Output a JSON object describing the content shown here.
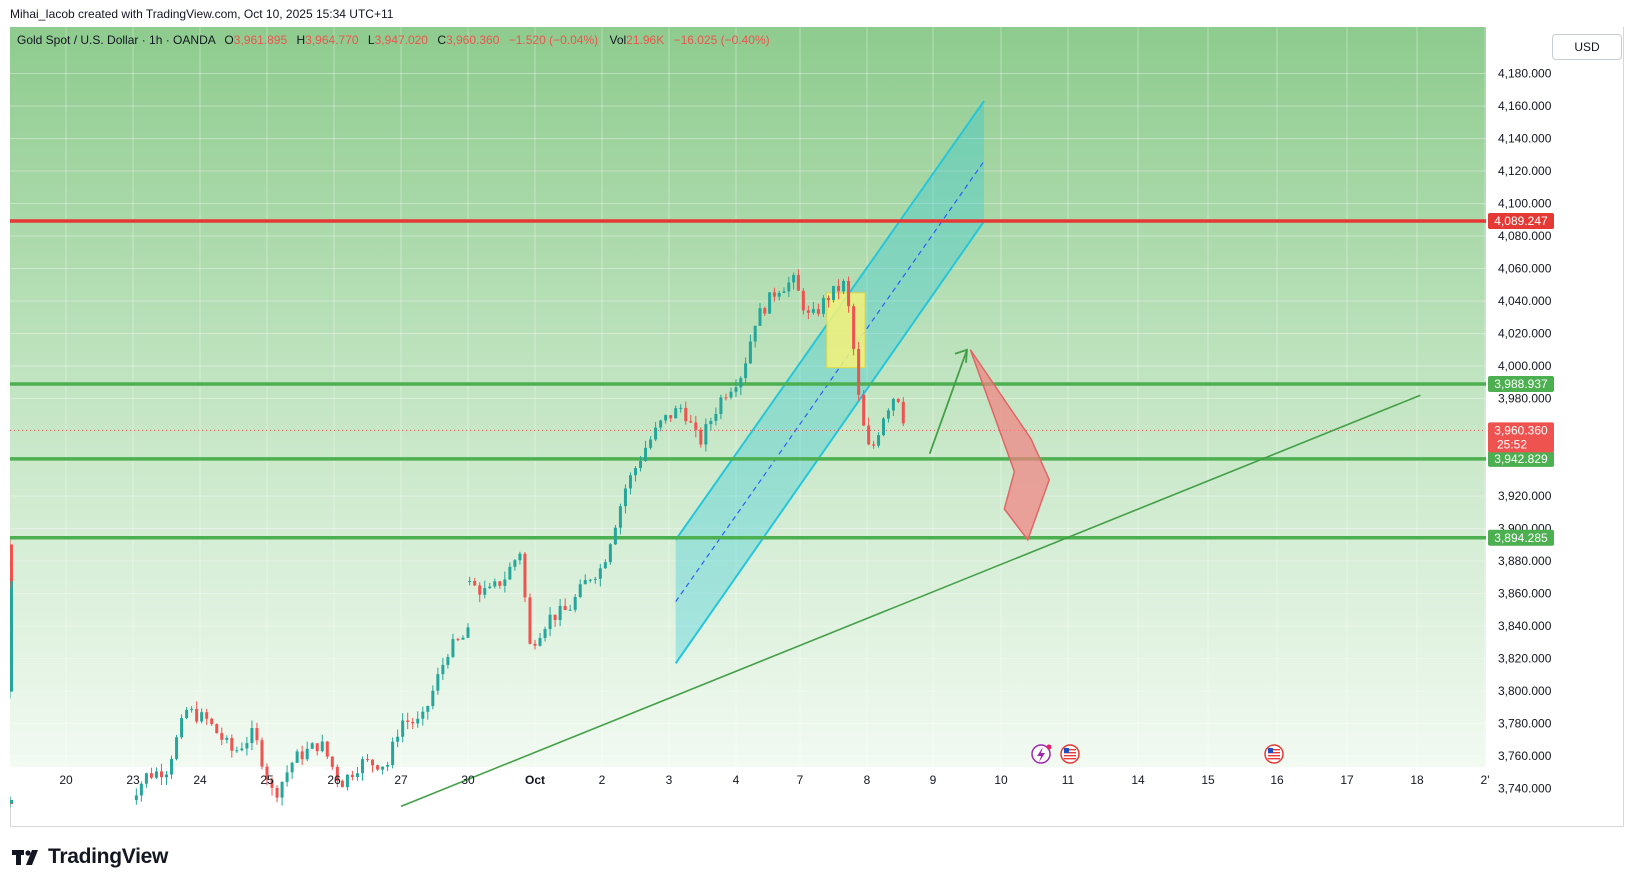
{
  "header": {
    "creator_line": "Mihai_Iacob created with TradingView.com, Oct 10, 2025 15:34 UTC+11"
  },
  "legend": {
    "symbol": "Gold Spot / U.S. Dollar · 1h · OANDA",
    "o_label": "O",
    "o_value": "3,961.895",
    "h_label": "H",
    "h_value": "3,964.770",
    "l_label": "L",
    "l_value": "3,947.020",
    "c_label": "C",
    "c_value": "3,960.360",
    "change": "−1.520 (−0.04%)",
    "vol_label": "Vol",
    "vol_value": "21.96K",
    "vol_change": "−16.025 (−0.40%)"
  },
  "currency_button": "USD",
  "brand": "TradingView",
  "colors": {
    "background_top": "#8ecb8e",
    "background_bottom": "#f2faf2",
    "resistance": "#e53935",
    "support": "#4caf50",
    "channel": "#26c6da",
    "candle_up": "#26a69a",
    "candle_down": "#ef5350",
    "price_label_bg": "#ef5350",
    "support_label_bg": "#4caf50",
    "arrow_red": "#f28080",
    "highlight_box": "#f5f27a"
  },
  "chart_data": {
    "type": "candlestick",
    "symbol": "XAUUSD",
    "timeframe": "1h",
    "y_axis_ticks": [
      "4,180.000",
      "4,160.000",
      "4,140.000",
      "4,120.000",
      "4,100.000",
      "4,080.000",
      "4,060.000",
      "4,040.000",
      "4,020.000",
      "4,000.000",
      "3,980.000",
      "3,920.000",
      "3,900.000",
      "3,880.000",
      "3,860.000",
      "3,840.000",
      "3,820.000",
      "3,800.000",
      "3,780.000",
      "3,760.000",
      "3,740.000"
    ],
    "x_axis_ticks": [
      "20",
      "23",
      "24",
      "25",
      "26",
      "27",
      "30",
      "Oct",
      "2",
      "3",
      "4",
      "7",
      "8",
      "9",
      "10",
      "11",
      "14",
      "15",
      "16",
      "17",
      "18",
      "2'"
    ],
    "ylim": [
      3730,
      4190
    ],
    "horizontal_levels": [
      {
        "label": "4,089.247",
        "value": 4089.247,
        "role": "resistance"
      },
      {
        "label": "3,988.937",
        "value": 3988.937,
        "role": "support"
      },
      {
        "label": "3,942.829",
        "value": 3942.829,
        "role": "support"
      },
      {
        "label": "3,894.285",
        "value": 3894.285,
        "role": "support"
      }
    ],
    "last_price": {
      "label": "3,960.360",
      "countdown": "25:52",
      "value": 3960.36
    },
    "close_path": [
      {
        "x": 22.9,
        "close": 3731
      },
      {
        "x": 23.2,
        "close": 3748
      },
      {
        "x": 23.5,
        "close": 3752
      },
      {
        "x": 23.8,
        "close": 3788
      },
      {
        "x": 24.1,
        "close": 3782
      },
      {
        "x": 24.5,
        "close": 3762
      },
      {
        "x": 24.8,
        "close": 3774
      },
      {
        "x": 25.1,
        "close": 3735
      },
      {
        "x": 25.4,
        "close": 3758
      },
      {
        "x": 25.8,
        "close": 3768
      },
      {
        "x": 26.1,
        "close": 3743
      },
      {
        "x": 26.4,
        "close": 3756
      },
      {
        "x": 26.8,
        "close": 3755
      },
      {
        "x": 27.0,
        "close": 3782
      },
      {
        "x": 27.3,
        "close": 3780
      },
      {
        "x": 27.7,
        "close": 3825
      },
      {
        "x": 28.0,
        "close": 3835
      },
      {
        "x": 28.3,
        "close": 3842
      },
      {
        "x": 28.6,
        "close": 3868
      },
      {
        "x": 28.8,
        "close": 3798
      },
      {
        "x": 29.1,
        "close": 3848
      },
      {
        "x": 29.4,
        "close": 3858
      },
      {
        "x": 29.6,
        "close": 3864
      },
      {
        "x": 29.75,
        "close": 3891
      },
      {
        "x": 30.0,
        "close": 3866
      },
      {
        "x": 30.3,
        "close": 3860
      },
      {
        "x": 30.55,
        "close": 3870
      },
      {
        "x": 30.8,
        "close": 3888
      },
      {
        "x": 30.9,
        "close": 3826
      },
      {
        "x": 31.2,
        "close": 3845
      },
      {
        "x": 31.5,
        "close": 3850
      },
      {
        "x": 31.8,
        "close": 3870
      },
      {
        "x": 32.0,
        "close": 3876
      },
      {
        "x": 32.35,
        "close": 3925
      },
      {
        "x": 32.65,
        "close": 3950
      },
      {
        "x": 32.9,
        "close": 3966
      },
      {
        "x": 33.2,
        "close": 3975
      },
      {
        "x": 33.45,
        "close": 3952
      },
      {
        "x": 33.8,
        "close": 3982
      },
      {
        "x": 34.1,
        "close": 3996
      },
      {
        "x": 34.3,
        "close": 4028
      },
      {
        "x": 34.65,
        "close": 4048
      },
      {
        "x": 34.9,
        "close": 4052
      },
      {
        "x": 35.15,
        "close": 4028
      },
      {
        "x": 35.4,
        "close": 4042
      },
      {
        "x": 35.65,
        "close": 4050
      },
      {
        "x": 35.75,
        "close": 4030
      },
      {
        "x": 35.9,
        "close": 3970
      },
      {
        "x": 36.05,
        "close": 3945
      },
      {
        "x": 36.25,
        "close": 3970
      },
      {
        "x": 36.45,
        "close": 3985
      },
      {
        "x": 36.6,
        "close": 3960
      }
    ],
    "annotations": [
      {
        "type": "channel",
        "description": "rising parallel channel with dashed midline"
      },
      {
        "type": "trendline",
        "description": "rising support trendline"
      },
      {
        "type": "arrow",
        "description": "projected rise then drop toward 3,894.285"
      }
    ]
  }
}
